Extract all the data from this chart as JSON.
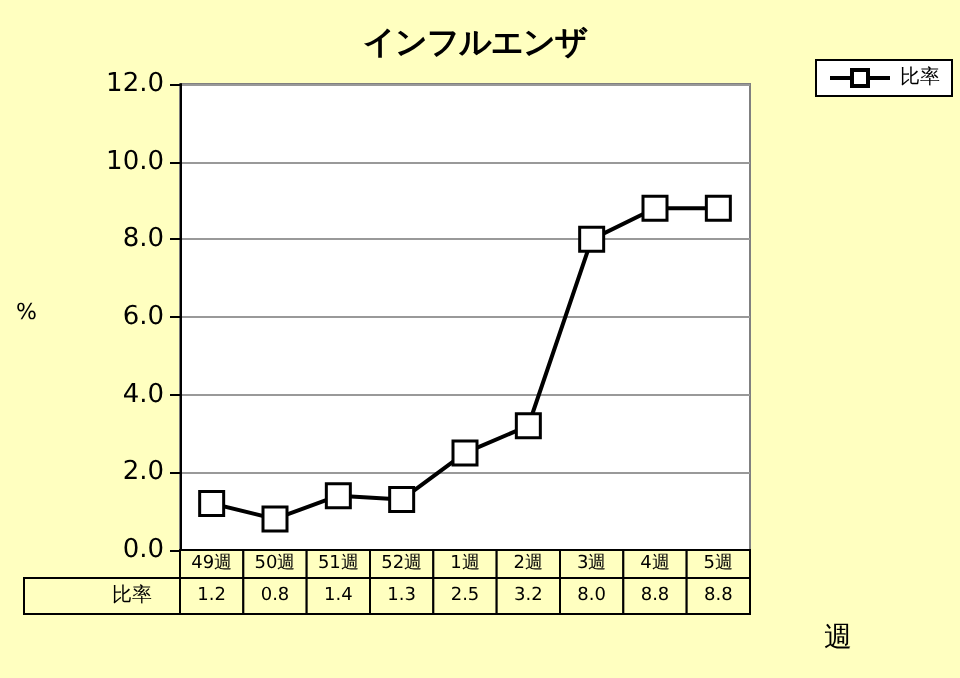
{
  "chart_data": {
    "type": "line",
    "title": "インフルエンザ",
    "ylabel": "%",
    "xlabel": "週",
    "categories": [
      "49週",
      "50週",
      "51週",
      "52週",
      "1週",
      "2週",
      "3週",
      "4週",
      "5週"
    ],
    "series": [
      {
        "name": "比率",
        "color": "#000000",
        "values": [
          1.2,
          0.8,
          1.4,
          1.3,
          2.5,
          3.2,
          8.0,
          8.8,
          8.8
        ],
        "value_labels": [
          "1.2",
          "0.8",
          "1.4",
          "1.3",
          "2.5",
          "3.2",
          "8.0",
          "8.8",
          "8.8"
        ]
      }
    ],
    "ylim": [
      0,
      12
    ],
    "yticks": [
      {
        "value": 0,
        "label": "0.0"
      },
      {
        "value": 2,
        "label": "2.0"
      },
      {
        "value": 4,
        "label": "4.0"
      },
      {
        "value": 6,
        "label": "6.0"
      },
      {
        "value": 8,
        "label": "8.0"
      },
      {
        "value": 10,
        "label": "10.0"
      },
      {
        "value": 12,
        "label": "12.0"
      }
    ],
    "grid": "y",
    "legend": "top right",
    "marker": "square",
    "line_style": "solid"
  }
}
